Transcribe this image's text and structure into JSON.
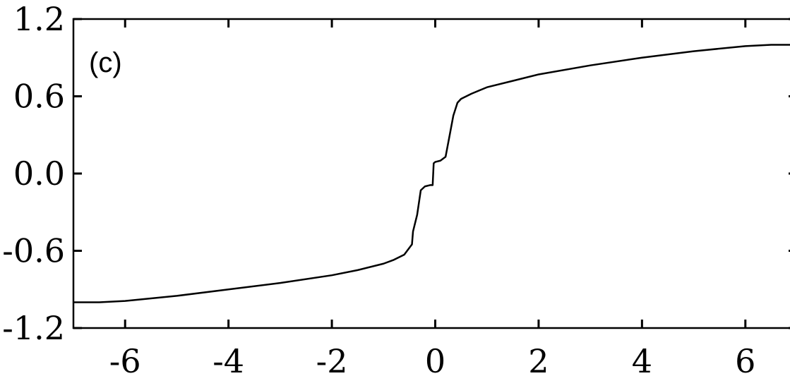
{
  "chart_data": {
    "type": "line",
    "title": "",
    "xlabel": "",
    "ylabel": "",
    "panel_label": "(c)",
    "xlim": [
      -7,
      7
    ],
    "ylim": [
      -1.2,
      1.2
    ],
    "x_ticks": [
      -6,
      -4,
      -2,
      0,
      2,
      4,
      6
    ],
    "x_tick_labels": [
      "-6",
      "-4",
      "-2",
      "0",
      "2",
      "4",
      "6"
    ],
    "y_ticks": [
      1.2,
      0.6,
      0.0,
      -0.6,
      -1.2
    ],
    "y_tick_labels": [
      "1.2",
      "0.6",
      "0.0",
      "-0.6",
      "-1.2"
    ],
    "grid": false,
    "series": [
      {
        "color": "#000000",
        "x": [
          -7.0,
          -6.5,
          -6.0,
          -5.0,
          -4.0,
          -3.0,
          -2.0,
          -1.5,
          -1.0,
          -0.8,
          -0.6,
          -0.45,
          -0.43,
          -0.35,
          -0.28,
          -0.2,
          -0.1,
          -0.05,
          -0.03,
          0.0,
          0.1,
          0.2,
          0.28,
          0.35,
          0.43,
          0.5,
          0.7,
          1.0,
          1.5,
          2.0,
          3.0,
          4.0,
          5.0,
          6.0,
          6.5,
          7.0
        ],
        "y": [
          -1.0,
          -1.0,
          -0.99,
          -0.95,
          -0.9,
          -0.85,
          -0.79,
          -0.75,
          -0.7,
          -0.67,
          -0.63,
          -0.55,
          -0.45,
          -0.32,
          -0.13,
          -0.1,
          -0.09,
          -0.09,
          0.08,
          0.09,
          0.1,
          0.13,
          0.3,
          0.45,
          0.55,
          0.58,
          0.62,
          0.67,
          0.72,
          0.77,
          0.84,
          0.9,
          0.95,
          0.99,
          1.0,
          1.0
        ]
      }
    ]
  }
}
